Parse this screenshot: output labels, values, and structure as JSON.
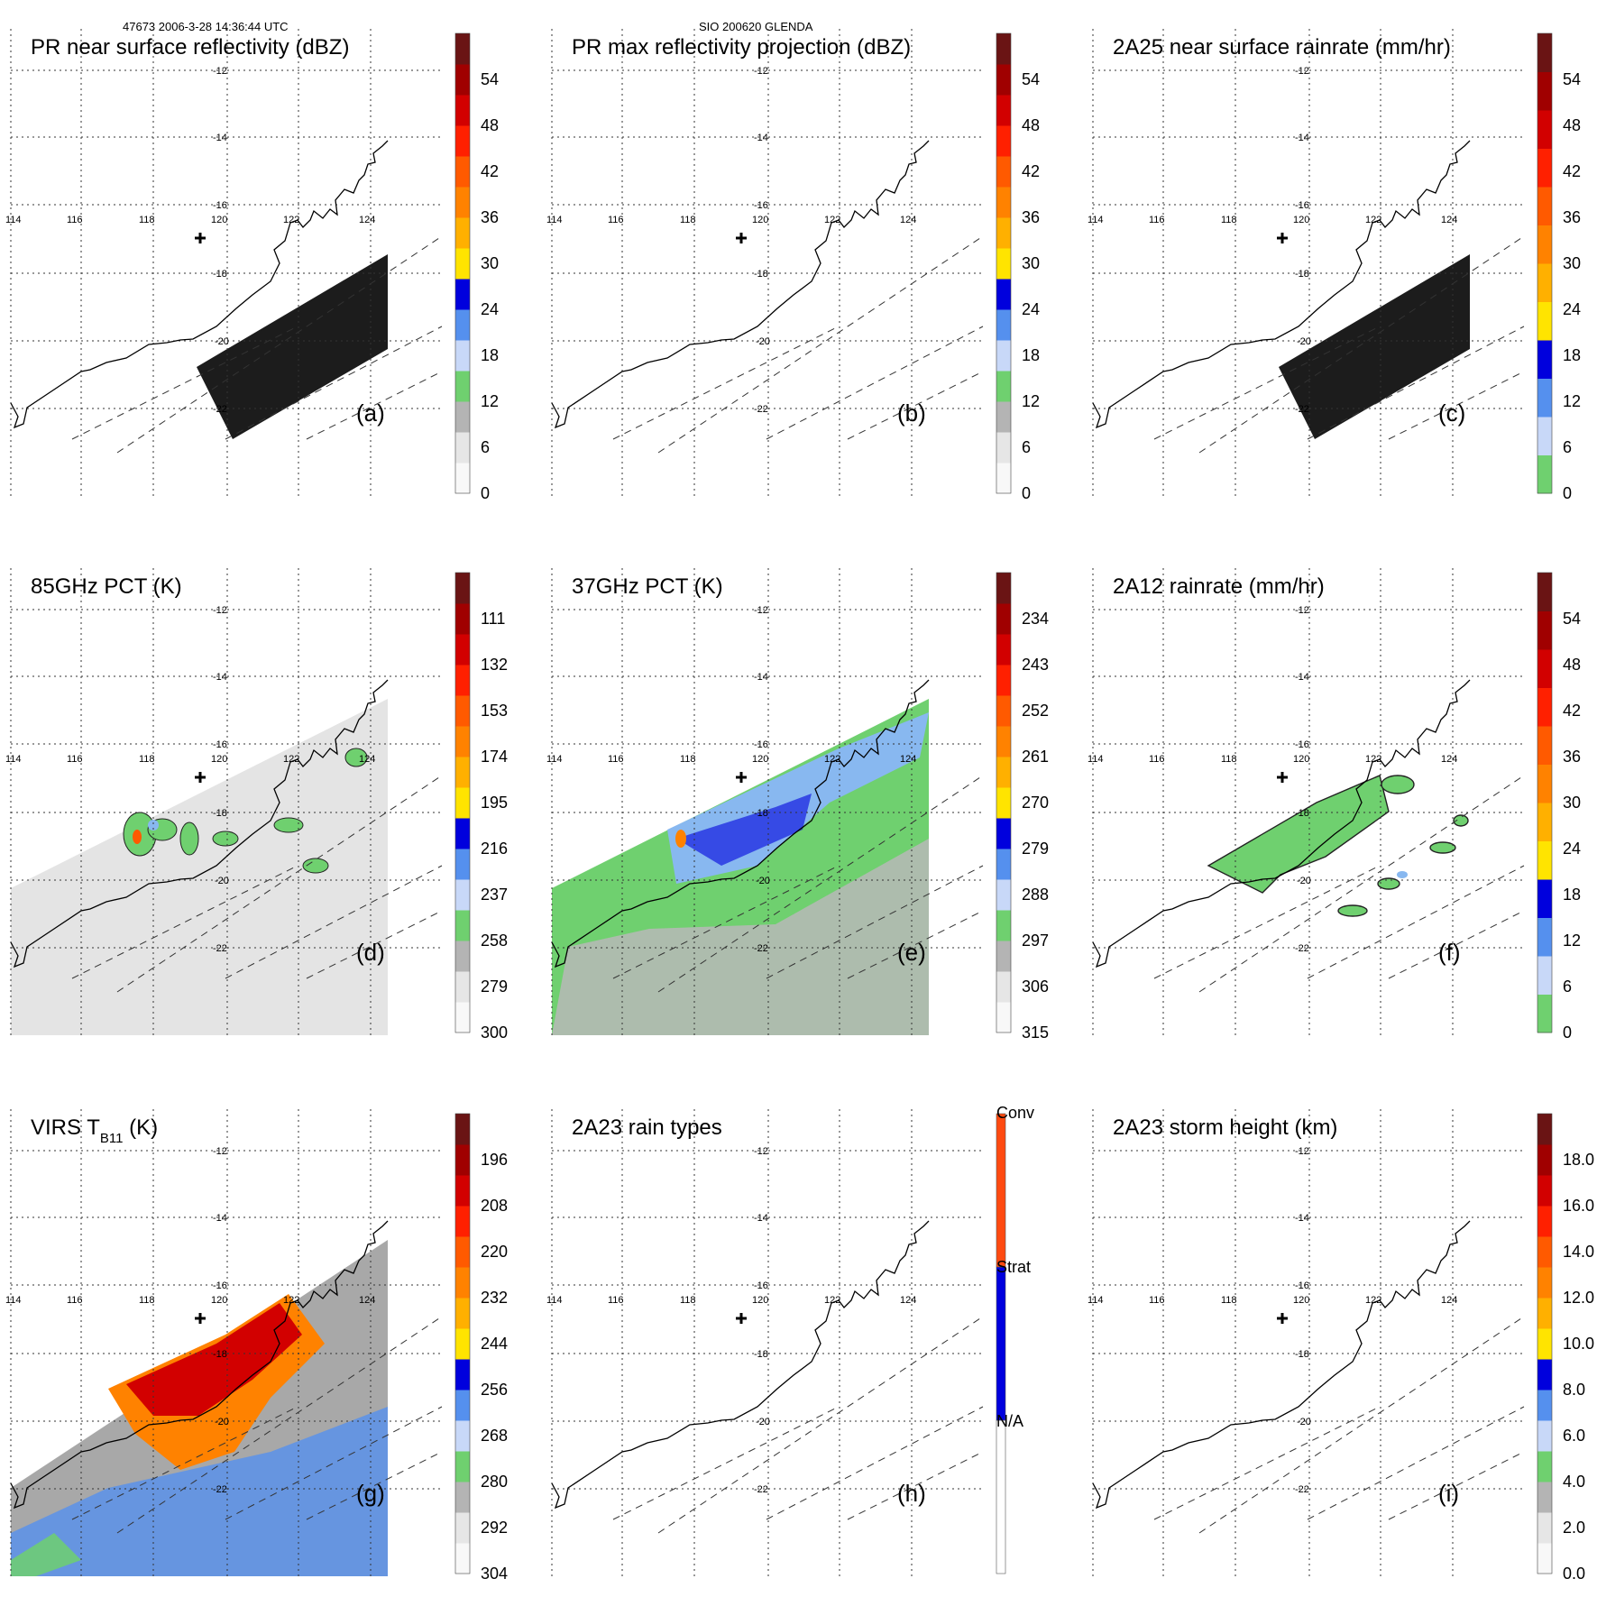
{
  "header": {
    "left": "47673 2006-3-28 14:36:44 UTC",
    "center": "SIO 200620 GLENDA"
  },
  "lon_labels": [
    "114",
    "116",
    "118",
    "120",
    "122",
    "124"
  ],
  "lat_labels": [
    "-12",
    "-14",
    "-16",
    "-18",
    "-20",
    "-22"
  ],
  "colors": {
    "white": "#f8f8f8",
    "grays": [
      "#e6e6e6",
      "#cfcfcf",
      "#b4b4b4",
      "#9a9a9a"
    ],
    "green": "#6fd06f",
    "lightblue": [
      "#c8d8f8",
      "#88b8f0",
      "#5590ee",
      "#2a5ce6"
    ],
    "blue": "#0000dd",
    "yellow": "#ffe400",
    "orange": [
      "#ffb000",
      "#ff8200",
      "#ff5a00"
    ],
    "red": [
      "#ff2000",
      "#d20000",
      "#a00000",
      "#6a1414",
      "#3c1a1a"
    ],
    "swath_black": "#1c1c1c",
    "rain_type_conv": "#ff4a10",
    "rain_type_strat": "#0000dd"
  },
  "panels": [
    {
      "id": "a",
      "title": "PR near surface reflectivity (dBZ)",
      "label": "(a)",
      "colorbar": [
        "0",
        "6",
        "12",
        "18",
        "24",
        "30",
        "36",
        "42",
        "48",
        "54"
      ],
      "scheme": "dbz"
    },
    {
      "id": "b",
      "title": "PR max reflectivity projection (dBZ)",
      "label": "(b)",
      "colorbar": [
        "0",
        "6",
        "12",
        "18",
        "24",
        "30",
        "36",
        "42",
        "48",
        "54"
      ],
      "scheme": "dbz"
    },
    {
      "id": "c",
      "title": "2A25 near surface rainrate (mm/hr)",
      "label": "(c)",
      "colorbar": [
        "0",
        "6",
        "12",
        "18",
        "24",
        "30",
        "36",
        "42",
        "48",
        "54"
      ],
      "scheme": "rain"
    },
    {
      "id": "d",
      "title": "85GHz PCT (K)",
      "label": "(d)",
      "colorbar": [
        "300",
        "279",
        "258",
        "237",
        "216",
        "195",
        "174",
        "153",
        "132",
        "111"
      ],
      "scheme": "dbz"
    },
    {
      "id": "e",
      "title": "37GHz PCT (K)",
      "label": "(e)",
      "colorbar": [
        "315",
        "306",
        "297",
        "288",
        "279",
        "270",
        "261",
        "252",
        "243",
        "234"
      ],
      "scheme": "dbz"
    },
    {
      "id": "f",
      "title": "2A12 rainrate (mm/hr)",
      "label": "(f)",
      "colorbar": [
        "0",
        "6",
        "12",
        "18",
        "24",
        "30",
        "36",
        "42",
        "48",
        "54"
      ],
      "scheme": "rain"
    },
    {
      "id": "g",
      "title": "VIRS T",
      "title_sub": "B11",
      "title_suffix": " (K)",
      "label": "(g)",
      "colorbar": [
        "304",
        "292",
        "280",
        "268",
        "256",
        "244",
        "232",
        "220",
        "208",
        "196"
      ],
      "scheme": "dbz"
    },
    {
      "id": "h",
      "title": "2A23 rain types",
      "label": "(h)",
      "colorbar": [
        "N/A",
        "Strat",
        "Conv"
      ],
      "scheme": "types"
    },
    {
      "id": "i",
      "title": "2A23 storm height (km)",
      "label": "(i)",
      "colorbar": [
        "0.0",
        "2.0",
        "4.0",
        "6.0",
        "8.0",
        "10.0",
        "12.0",
        "14.0",
        "16.0",
        "18.0"
      ],
      "scheme": "dbz"
    }
  ]
}
